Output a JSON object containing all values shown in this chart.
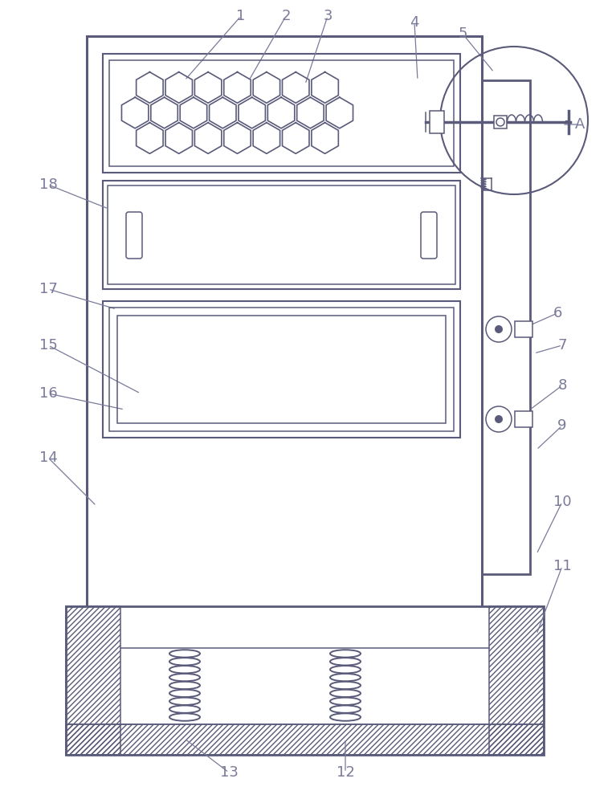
{
  "bg_color": "#ffffff",
  "line_color": "#5a5a7a",
  "label_color": "#7a7a9a",
  "fig_width": 7.67,
  "fig_height": 10.0
}
